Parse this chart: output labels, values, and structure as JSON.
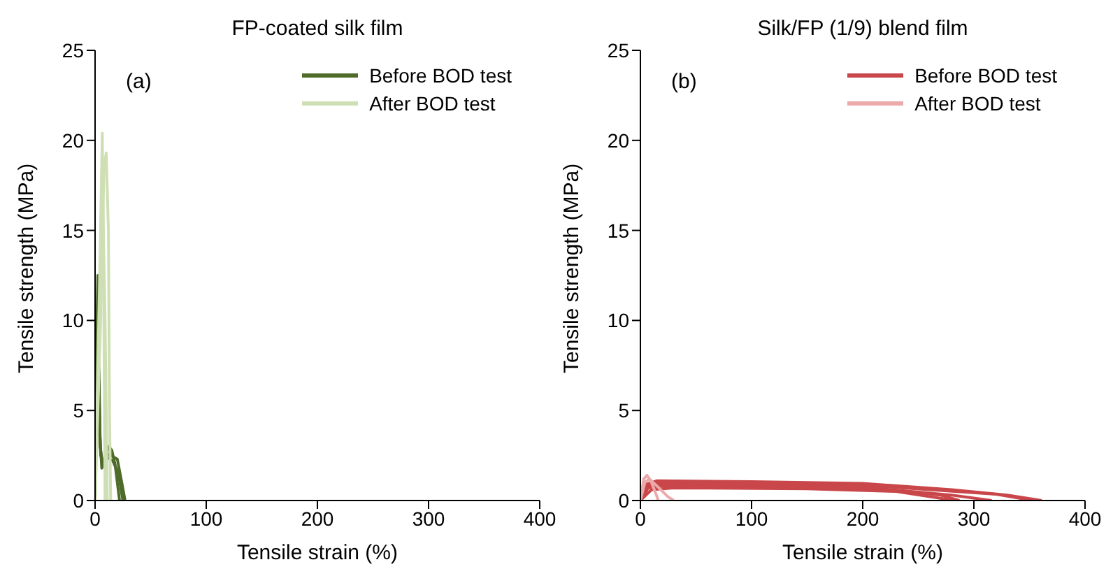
{
  "chart_data": [
    {
      "type": "line",
      "title": "FP-coated silk film",
      "xlabel": "Tensile strain (%)",
      "ylabel": "Tensile strength (MPa)",
      "annotations": [
        "(a)"
      ],
      "xlim": [
        0,
        400
      ],
      "xticks": [
        0,
        100,
        200,
        300,
        400
      ],
      "ylim": [
        0,
        25
      ],
      "yticks": [
        0,
        5,
        10,
        15,
        20,
        25
      ],
      "legend": "top right",
      "marker": "none",
      "line_style": "solid",
      "series": [
        {
          "name": "Before BOD test",
          "color": "#4e6b2a",
          "x": [
            0,
            1,
            2.5,
            3.5,
            5,
            8,
            12,
            15,
            18,
            22
          ],
          "values": [
            0,
            8,
            12.5,
            6,
            2.5,
            2,
            3,
            2.8,
            2,
            0
          ]
        },
        {
          "color": "#4e6b2a",
          "x": [
            0,
            1.5,
            3,
            4,
            6,
            10,
            14,
            20,
            24,
            27
          ],
          "values": [
            0,
            10,
            11,
            4,
            1.8,
            2.6,
            2.5,
            2.3,
            1,
            0
          ]
        },
        {
          "color": "#4e6b2a",
          "x": [
            0,
            2,
            3,
            4.5,
            7,
            11,
            16,
            21,
            25
          ],
          "values": [
            0,
            9,
            10.5,
            3,
            2,
            2.4,
            2.2,
            1.5,
            0
          ]
        },
        {
          "name": "After BOD test",
          "color": "#cfdfb4",
          "x": [
            0,
            4,
            6.5,
            7.5,
            9
          ],
          "values": [
            0,
            12,
            20.4,
            14,
            0
          ]
        },
        {
          "color": "#cfdfb4",
          "x": [
            0,
            5,
            8,
            10,
            12,
            13,
            14
          ],
          "values": [
            0,
            10,
            18.5,
            19.3,
            15,
            5,
            0
          ]
        },
        {
          "color": "#cfdfb4",
          "x": [
            0,
            4,
            7,
            9,
            11
          ],
          "values": [
            0,
            9,
            16.5,
            10,
            0
          ]
        }
      ]
    },
    {
      "type": "line",
      "title": "Silk/FP (1/9) blend film",
      "xlabel": "Tensile strain (%)",
      "ylabel": "Tensile strength (MPa)",
      "annotations": [
        "(b)"
      ],
      "xlim": [
        0,
        400
      ],
      "xticks": [
        0,
        100,
        200,
        300,
        400
      ],
      "ylim": [
        0,
        25
      ],
      "yticks": [
        0,
        5,
        10,
        15,
        20,
        25
      ],
      "legend": "top right",
      "marker": "none",
      "line_style": "solid",
      "series": [
        {
          "name": "Before BOD test",
          "color": "#c9474a",
          "x": [
            0,
            5,
            15,
            100,
            200,
            280,
            330,
            361
          ],
          "values": [
            0,
            0.9,
            1.1,
            1.05,
            0.95,
            0.6,
            0.3,
            0
          ]
        },
        {
          "color": "#c9474a",
          "x": [
            0,
            5,
            15,
            100,
            200,
            260,
            320,
            353
          ],
          "values": [
            0,
            0.8,
            1.0,
            0.95,
            0.85,
            0.6,
            0.35,
            0
          ]
        },
        {
          "color": "#c9474a",
          "x": [
            0,
            8,
            20,
            100,
            200,
            280,
            316
          ],
          "values": [
            0,
            0.8,
            0.9,
            0.85,
            0.75,
            0.3,
            0
          ]
        },
        {
          "color": "#c9474a",
          "x": [
            0,
            6,
            20,
            120,
            220,
            270,
            287
          ],
          "values": [
            0,
            0.7,
            0.8,
            0.75,
            0.6,
            0.3,
            0
          ]
        },
        {
          "color": "#c9474a",
          "x": [
            0,
            10,
            30,
            150,
            230,
            283
          ],
          "values": [
            0,
            0.6,
            0.7,
            0.65,
            0.5,
            0
          ]
        },
        {
          "name": "After BOD test",
          "color": "#eba9aa",
          "x": [
            0,
            3,
            6,
            10,
            15,
            16
          ],
          "values": [
            0,
            1.2,
            1.4,
            1.0,
            0.2,
            0
          ]
        },
        {
          "color": "#eba9aa",
          "x": [
            0,
            4,
            8,
            15,
            25,
            30
          ],
          "values": [
            0,
            1.0,
            1.2,
            0.8,
            0.2,
            0
          ]
        }
      ]
    }
  ]
}
